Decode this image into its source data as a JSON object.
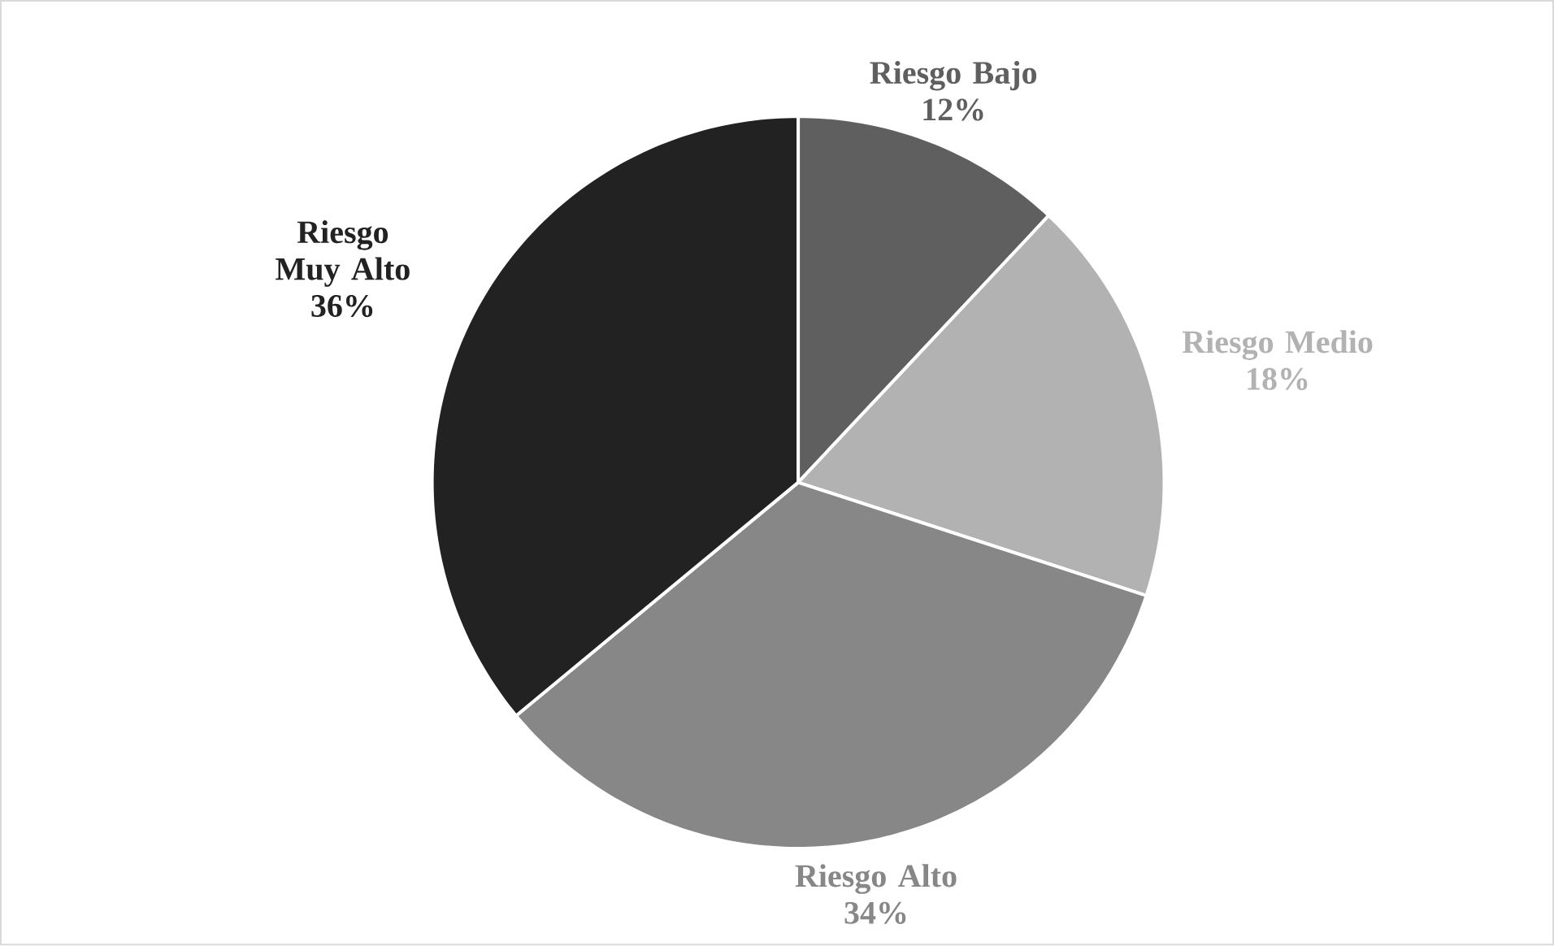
{
  "chart_data": {
    "type": "pie",
    "categories": [
      "Riesgo Bajo",
      "Riesgo Medio",
      "Riesgo Alto",
      "Riesgo Muy Alto"
    ],
    "values": [
      12,
      18,
      34,
      36
    ],
    "value_labels": [
      "12%",
      "18%",
      "34%",
      "36%"
    ],
    "colors": [
      "#5f5f5f",
      "#b2b2b2",
      "#878787",
      "#222222"
    ]
  }
}
